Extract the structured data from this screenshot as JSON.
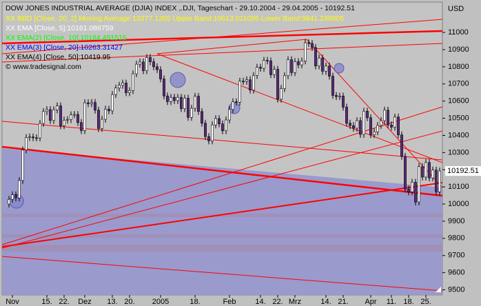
{
  "chart_data": {
    "type": "candlestick",
    "title": "DOW JONES INDUSTRIAL AVERAGE (DJIA) INDEX ,.DJI, Tageschart - 29.10.2004 - 29.04.2005 - 10192.51",
    "indicators": [
      {
        "name": "XX BBD [Close, 20, 2] Moving Average:10277.1305 Upper Band:10613.011095 Lower Band:9941.249905",
        "color": "#ffff00"
      },
      {
        "name": "XX EMA [Close, 5]:10161.086759",
        "color": "#ffffff"
      },
      {
        "name": "XX EMA(2) [Close, 10]:10184.491515",
        "color": "#00ff00"
      },
      {
        "name": "XX EMA(3) [Close, 20]:10263.31427",
        "color": "#0000ff"
      },
      {
        "name": "XX EMA(4) [Close, 50]:10419.95",
        "color": "#000000"
      }
    ],
    "source": "© www.tradesignal.com",
    "y_label": "USD",
    "up_color": "#ffffff",
    "down_color": "#5a2a7a",
    "grid": false,
    "xlim": [
      -2,
      125.8
    ],
    "xticks": [
      {
        "value": 1,
        "label": "Nov"
      },
      {
        "value": 11,
        "label": "15."
      },
      {
        "value": 16,
        "label": "22."
      },
      {
        "value": 22,
        "label": "Dez"
      },
      {
        "value": 30,
        "label": "13."
      },
      {
        "value": 35,
        "label": "20."
      },
      {
        "value": 44,
        "label": "2005"
      },
      {
        "value": 54,
        "label": "18."
      },
      {
        "value": 64,
        "label": "Feb"
      },
      {
        "value": 73,
        "label": "14."
      },
      {
        "value": 78,
        "label": "22."
      },
      {
        "value": 83,
        "label": "Mrz"
      },
      {
        "value": 92,
        "label": "14."
      },
      {
        "value": 97,
        "label": "21."
      },
      {
        "value": 105,
        "label": "Apr"
      },
      {
        "value": 111,
        "label": "11."
      },
      {
        "value": 116,
        "label": "18."
      },
      {
        "value": 121,
        "label": "25."
      }
    ],
    "ylim": [
      9470,
      11177
    ],
    "yticks": [
      9500,
      9600,
      9700,
      9800,
      9900,
      10000,
      10100,
      10200,
      10300,
      10400,
      10500,
      10600,
      10700,
      10800,
      10900,
      11000
    ],
    "open": [
      10000,
      10027,
      10054,
      10035,
      10137,
      10315,
      10387,
      10391,
      10386,
      10385,
      10470,
      10539,
      10550,
      10487,
      10549,
      10572,
      10456,
      10489,
      10492,
      10520,
      10522,
      10475,
      10428,
      10590,
      10585,
      10592,
      10547,
      10440,
      10494,
      10553,
      10543,
      10638,
      10676,
      10692,
      10705,
      10649,
      10661,
      10759,
      10815,
      10828,
      10777,
      10854,
      10829,
      10800,
      10783,
      10729,
      10630,
      10597,
      10622,
      10603,
      10622,
      10556,
      10617,
      10505,
      10558,
      10628,
      10539,
      10471,
      10393,
      10368,
      10461,
      10498,
      10467,
      10427,
      10490,
      10551,
      10596,
      10593,
      10716,
      10715,
      10724,
      10664,
      10749,
      10797,
      10791,
      10837,
      10834,
      10754,
      10785,
      10611,
      10673,
      10748,
      10841,
      10766,
      10830,
      10811,
      10834,
      10940,
      10936,
      10912,
      10805,
      10851,
      10774,
      10804,
      10745,
      10633,
      10626,
      10629,
      10565,
      10471,
      10457,
      10442,
      10486,
      10406,
      10541,
      10503,
      10404,
      10421,
      10458,
      10486,
      10547,
      10461,
      10448,
      10507,
      10403,
      10278,
      10087,
      10071,
      10127,
      10012,
      10218,
      10157,
      10242,
      10152,
      10198,
      10071
    ],
    "high": [
      10047,
      10074,
      10074,
      10157,
      10335,
      10407,
      10411,
      10411,
      10406,
      10490,
      10559,
      10570,
      10570,
      10569,
      10592,
      10592,
      10509,
      10512,
      10540,
      10542,
      10542,
      10495,
      10610,
      10610,
      10612,
      10612,
      10567,
      10514,
      10573,
      10573,
      10658,
      10696,
      10712,
      10725,
      10725,
      10681,
      10779,
      10835,
      10848,
      10848,
      10874,
      10874,
      10849,
      10820,
      10803,
      10749,
      10650,
      10642,
      10642,
      10642,
      10642,
      10637,
      10637,
      10578,
      10648,
      10648,
      10559,
      10491,
      10413,
      10481,
      10518,
      10518,
      10487,
      10510,
      10571,
      10616,
      10616,
      10736,
      10736,
      10744,
      10744,
      10769,
      10817,
      10817,
      10857,
      10857,
      10854,
      10805,
      10805,
      10693,
      10768,
      10861,
      10861,
      10850,
      10850,
      10854,
      10960,
      10960,
      10956,
      10932,
      10871,
      10871,
      10824,
      10824,
      10765,
      10653,
      10649,
      10649,
      10585,
      10491,
      10477,
      10506,
      10506,
      10561,
      10561,
      10523,
      10441,
      10478,
      10506,
      10567,
      10567,
      10481,
      10527,
      10527,
      10423,
      10298,
      10107,
      10147,
      10147,
      10238,
      10238,
      10262,
      10262,
      10218,
      10218,
      10213
    ],
    "low": [
      9980,
      10007,
      10015,
      10015,
      10117,
      10295,
      10367,
      10366,
      10365,
      10365,
      10450,
      10519,
      10467,
      10467,
      10529,
      10436,
      10436,
      10469,
      10472,
      10500,
      10455,
      10408,
      10408,
      10565,
      10565,
      10527,
      10420,
      10420,
      10474,
      10523,
      10523,
      10618,
      10656,
      10672,
      10629,
      10629,
      10641,
      10739,
      10795,
      10757,
      10757,
      10809,
      10780,
      10763,
      10709,
      10610,
      10577,
      10577,
      10583,
      10583,
      10536,
      10536,
      10485,
      10485,
      10538,
      10519,
      10451,
      10373,
      10348,
      10348,
      10441,
      10447,
      10407,
      10407,
      10470,
      10531,
      10573,
      10573,
      10695,
      10695,
      10644,
      10644,
      10729,
      10771,
      10771,
      10814,
      10734,
      10734,
      10591,
      10591,
      10653,
      10728,
      10746,
      10746,
      10791,
      10791,
      10814,
      10916,
      10892,
      10785,
      10785,
      10754,
      10754,
      10725,
      10613,
      10606,
      10606,
      10545,
      10451,
      10437,
      10422,
      10422,
      10386,
      10386,
      10483,
      10384,
      10384,
      10401,
      10438,
      10466,
      10441,
      10428,
      10428,
      10383,
      10258,
      10067,
      10051,
      10051,
      9992,
      9992,
      10137,
      10137,
      10132,
      10132,
      10051,
      10051
    ],
    "close": [
      10027,
      10054,
      10035,
      10137,
      10315,
      10387,
      10391,
      10386,
      10385,
      10470,
      10539,
      10550,
      10487,
      10549,
      10572,
      10456,
      10489,
      10492,
      10520,
      10522,
      10475,
      10428,
      10590,
      10585,
      10592,
      10547,
      10440,
      10494,
      10553,
      10543,
      10638,
      10676,
      10692,
      10705,
      10649,
      10661,
      10759,
      10815,
      10828,
      10777,
      10854,
      10829,
      10800,
      10783,
      10729,
      10630,
      10597,
      10622,
      10603,
      10622,
      10556,
      10617,
      10505,
      10558,
      10628,
      10539,
      10471,
      10393,
      10368,
      10461,
      10498,
      10467,
      10427,
      10490,
      10551,
      10596,
      10593,
      10716,
      10715,
      10724,
      10664,
      10749,
      10797,
      10791,
      10837,
      10834,
      10754,
      10785,
      10611,
      10673,
      10748,
      10841,
      10766,
      10830,
      10811,
      10834,
      10940,
      10936,
      10912,
      10805,
      10851,
      10774,
      10804,
      10745,
      10633,
      10626,
      10629,
      10565,
      10471,
      10457,
      10442,
      10486,
      10406,
      10541,
      10503,
      10404,
      10421,
      10458,
      10486,
      10547,
      10461,
      10448,
      10507,
      10403,
      10278,
      10087,
      10071,
      10127,
      10012,
      10218,
      10157,
      10242,
      10152,
      10198,
      10071,
      10192.51
    ]
  }
}
